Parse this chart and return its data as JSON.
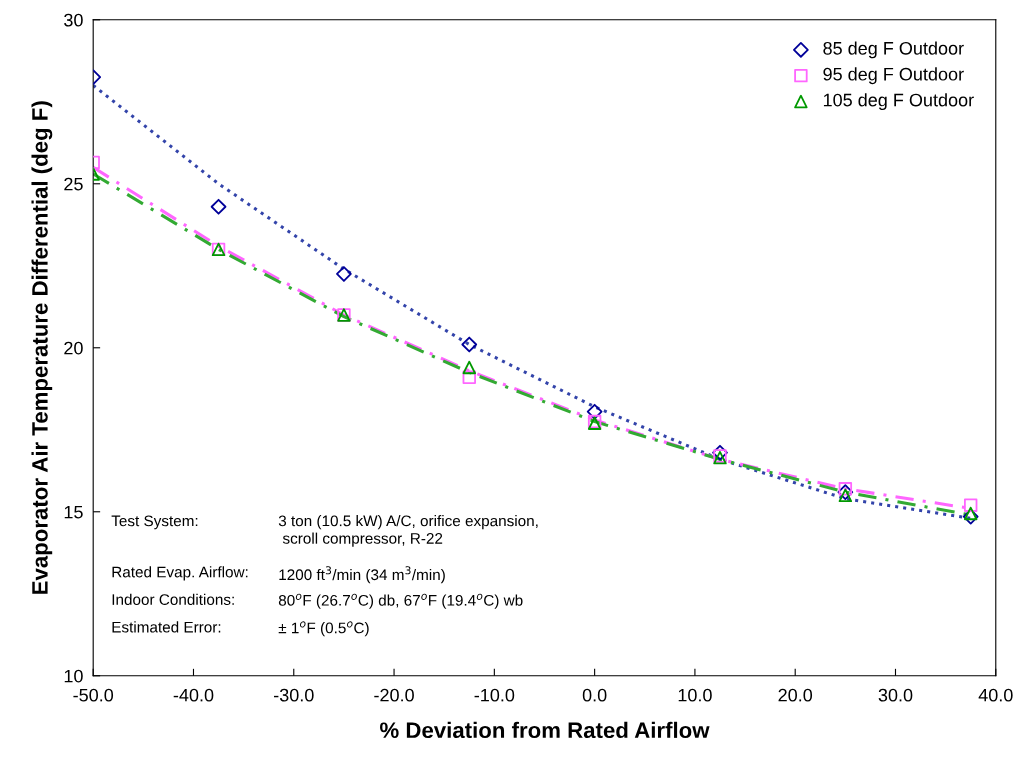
{
  "chart_data": {
    "type": "scatter",
    "xlabel": "% Deviation from Rated Airflow",
    "ylabel": "Evaporator Air Temperature Differential (deg F)",
    "xlim": [
      -50,
      40
    ],
    "ylim": [
      10,
      30
    ],
    "xticks": [
      {
        "value": -50,
        "label": "-50.0"
      },
      {
        "value": -40,
        "label": "-40.0"
      },
      {
        "value": -30,
        "label": "-30.0"
      },
      {
        "value": -20,
        "label": "-20.0"
      },
      {
        "value": -10,
        "label": "-10.0"
      },
      {
        "value": 0,
        "label": "0.0"
      },
      {
        "value": 10,
        "label": "10.0"
      },
      {
        "value": 20,
        "label": "20.0"
      },
      {
        "value": 30,
        "label": "30.0"
      },
      {
        "value": 40,
        "label": "40.0"
      }
    ],
    "yticks": [
      10,
      15,
      20,
      25,
      30
    ],
    "grid": false,
    "legend": "top right",
    "series": [
      {
        "type": "line",
        "color": "#3344aa",
        "line_style": "dotted",
        "marker": "none",
        "x": [
          -50,
          -37.5,
          -25,
          -12.5,
          0,
          12.5,
          25,
          37.5
        ],
        "values": [
          28.0,
          25.0,
          22.4,
          20.1,
          18.2,
          16.6,
          15.4,
          14.8
        ]
      },
      {
        "type": "line",
        "color": "#ff66ff",
        "line_style": "dashed",
        "marker": "none",
        "x": [
          -50,
          -37.5,
          -25,
          -12.5,
          0,
          12.5,
          25,
          37.5
        ],
        "values": [
          25.5,
          23.1,
          21.0,
          19.3,
          17.8,
          16.6,
          15.7,
          15.1
        ]
      },
      {
        "type": "line",
        "color": "#33aa33",
        "line_style": "dashed",
        "marker": "none",
        "x": [
          -50,
          -37.5,
          -25,
          -12.5,
          0,
          12.5,
          25,
          37.5
        ],
        "values": [
          25.3,
          23.0,
          20.95,
          19.25,
          17.75,
          16.6,
          15.6,
          14.9
        ]
      },
      {
        "name": "85 deg F Outdoor",
        "color": "#000099",
        "marker": "diamond",
        "x": [
          -50,
          -37.5,
          -25,
          -12.5,
          0,
          12.5,
          25,
          37.5
        ],
        "values": [
          28.25,
          24.3,
          22.25,
          20.1,
          18.05,
          16.8,
          15.6,
          14.85
        ]
      },
      {
        "name": "95 deg F Outdoor",
        "color": "#ff66ff",
        "marker": "square",
        "x": [
          -50,
          -37.5,
          -25,
          -12.5,
          0,
          12.5,
          25,
          37.5
        ],
        "values": [
          25.65,
          23.0,
          21.0,
          19.1,
          17.75,
          16.7,
          15.7,
          15.2
        ]
      },
      {
        "name": "105 deg F Outdoor",
        "color": "#009900",
        "marker": "triangle",
        "x": [
          -50,
          -37.5,
          -25,
          -12.5,
          0,
          12.5,
          25,
          37.5
        ],
        "values": [
          25.3,
          23.0,
          21.0,
          19.4,
          17.7,
          16.65,
          15.5,
          14.95
        ]
      }
    ],
    "annotations": [
      "Test System:",
      "3 ton (10.5 kW) A/C, orifice expansion,\n scroll compressor, R-22",
      "Rated Evap. Airflow:",
      "1200 ft$^{3}$/min (34 m$^{3}$/min)",
      "Indoor Conditions:",
      "80$^{o}$F (26.7$^{o}$C) db, 67$^{o}$F (19.4$^{o}$C) wb",
      "Estimated Error:",
      "± 1$^{o}$F (0.5$^{o}$C)"
    ]
  }
}
